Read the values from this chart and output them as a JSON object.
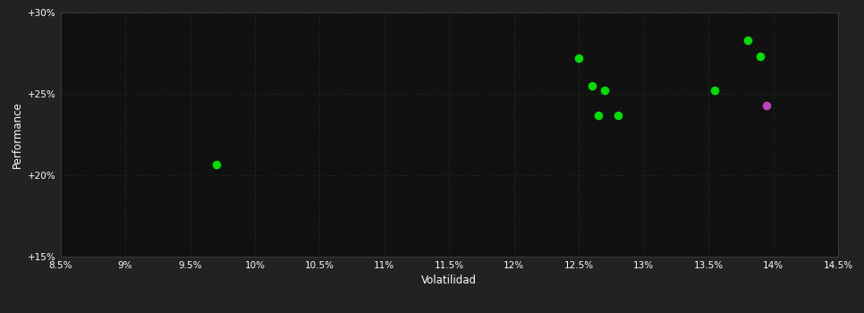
{
  "background_color": "#222222",
  "plot_bg_color": "#111111",
  "grid_color": "#1a3a1a",
  "text_color": "#ffffff",
  "xlabel": "Volatilidad",
  "ylabel": "Performance",
  "xlim": [
    0.085,
    0.145
  ],
  "ylim": [
    0.15,
    0.3
  ],
  "xticks": [
    0.085,
    0.09,
    0.095,
    0.1,
    0.105,
    0.11,
    0.115,
    0.12,
    0.125,
    0.13,
    0.135,
    0.14,
    0.145
  ],
  "yticks": [
    0.15,
    0.2,
    0.25,
    0.3
  ],
  "green_dots": [
    [
      0.097,
      0.2065
    ],
    [
      0.125,
      0.272
    ],
    [
      0.126,
      0.255
    ],
    [
      0.127,
      0.252
    ],
    [
      0.1265,
      0.237
    ],
    [
      0.128,
      0.237
    ],
    [
      0.1355,
      0.252
    ],
    [
      0.138,
      0.283
    ],
    [
      0.139,
      0.273
    ]
  ],
  "magenta_dots": [
    [
      0.1395,
      0.243
    ]
  ],
  "dot_size": 35,
  "green_color": "#00dd00",
  "magenta_color": "#bb44bb"
}
